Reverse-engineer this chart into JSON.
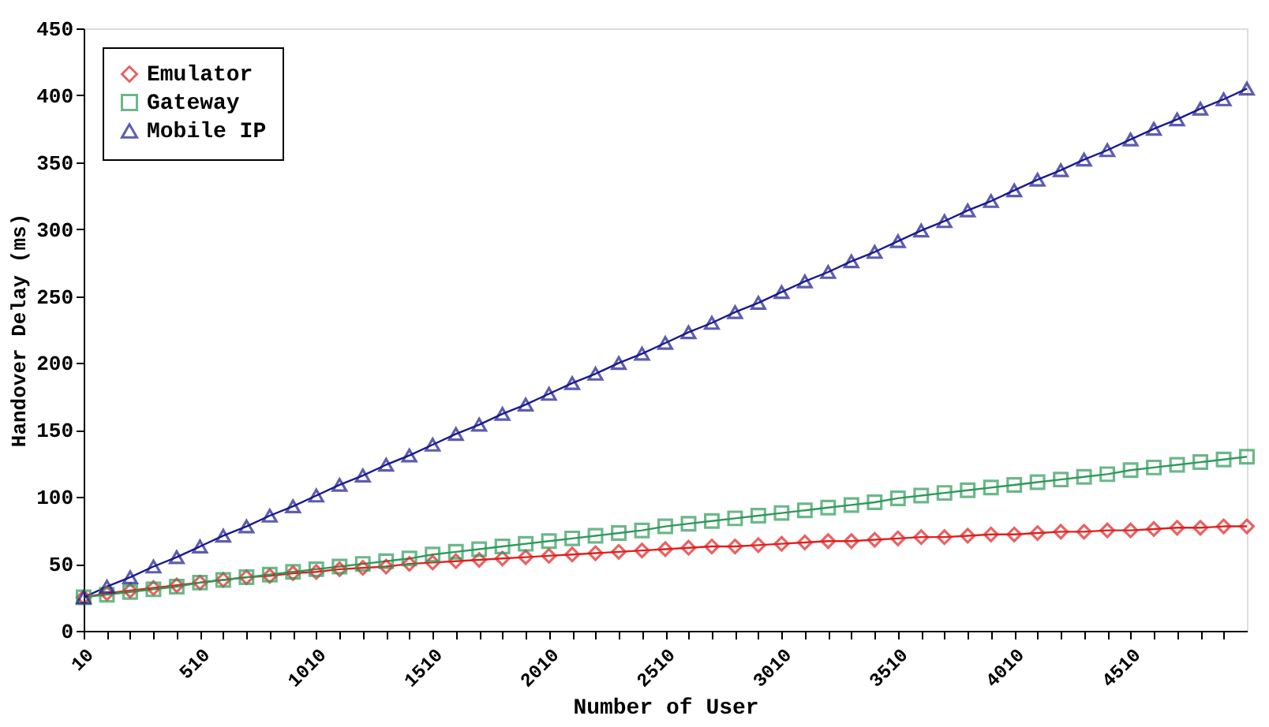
{
  "chart_data": {
    "type": "line",
    "xlabel": "Number of User",
    "ylabel": "Handover Delay (ms)",
    "x": [
      10,
      110,
      210,
      310,
      410,
      510,
      610,
      710,
      810,
      910,
      1010,
      1110,
      1210,
      1310,
      1410,
      1510,
      1610,
      1710,
      1810,
      1910,
      2010,
      2110,
      2210,
      2310,
      2410,
      2510,
      2610,
      2710,
      2810,
      2910,
      3010,
      3110,
      3210,
      3310,
      3410,
      3510,
      3610,
      3710,
      3810,
      3910,
      4010,
      4110,
      4210,
      4310,
      4410,
      4510,
      4610,
      4710,
      4810,
      4910,
      5010
    ],
    "series": [
      {
        "name": "Emulator",
        "color": "#e02020",
        "marker": "diamond",
        "values": [
          25,
          28,
          30,
          32,
          34,
          36,
          38,
          40,
          41,
          43,
          44,
          46,
          47,
          48,
          50,
          51,
          52,
          53,
          54,
          55,
          56,
          57,
          58,
          59,
          60,
          61,
          62,
          63,
          63,
          64,
          65,
          66,
          67,
          67,
          68,
          69,
          70,
          70,
          71,
          72,
          72,
          73,
          74,
          74,
          75,
          75,
          76,
          77,
          77,
          78,
          78
        ]
      },
      {
        "name": "Gateway",
        "color": "#2e9a5a",
        "marker": "square",
        "values": [
          25,
          27,
          29,
          31,
          33,
          36,
          38,
          40,
          42,
          44,
          46,
          48,
          50,
          52,
          54,
          57,
          59,
          61,
          63,
          65,
          67,
          69,
          71,
          73,
          75,
          78,
          80,
          82,
          84,
          86,
          88,
          90,
          92,
          94,
          96,
          99,
          101,
          103,
          105,
          107,
          109,
          111,
          113,
          115,
          117,
          120,
          122,
          124,
          126,
          128,
          130
        ]
      },
      {
        "name": "Mobile IP",
        "color": "#1a1a8c",
        "marker": "triangle",
        "values": [
          25,
          33,
          40,
          48,
          55,
          63,
          71,
          78,
          86,
          93,
          101,
          109,
          116,
          124,
          131,
          139,
          147,
          154,
          162,
          169,
          177,
          185,
          192,
          200,
          207,
          215,
          223,
          230,
          238,
          245,
          253,
          261,
          268,
          276,
          283,
          291,
          299,
          306,
          314,
          321,
          329,
          337,
          344,
          352,
          359,
          367,
          375,
          382,
          390,
          397,
          405
        ]
      }
    ],
    "xlim": [
      10,
      5010
    ],
    "xticks": [
      10,
      {
        "value": 110,
        "label": null
      },
      {
        "value": 210,
        "label": null
      },
      {
        "value": 310,
        "label": null
      },
      {
        "value": 410,
        "label": null
      },
      510,
      {
        "value": 610,
        "label": null
      },
      {
        "value": 710,
        "label": null
      },
      {
        "value": 810,
        "label": null
      },
      {
        "value": 910,
        "label": null
      },
      1010,
      {
        "value": 1110,
        "label": null
      },
      {
        "value": 1210,
        "label": null
      },
      {
        "value": 1310,
        "label": null
      },
      {
        "value": 1410,
        "label": null
      },
      1510,
      {
        "value": 1610,
        "label": null
      },
      {
        "value": 1710,
        "label": null
      },
      {
        "value": 1810,
        "label": null
      },
      {
        "value": 1910,
        "label": null
      },
      2010,
      {
        "value": 2110,
        "label": null
      },
      {
        "value": 2210,
        "label": null
      },
      {
        "value": 2310,
        "label": null
      },
      {
        "value": 2410,
        "label": null
      },
      2510,
      {
        "value": 2610,
        "label": null
      },
      {
        "value": 2710,
        "label": null
      },
      {
        "value": 2810,
        "label": null
      },
      {
        "value": 2910,
        "label": null
      },
      3010,
      {
        "value": 3110,
        "label": null
      },
      {
        "value": 3210,
        "label": null
      },
      {
        "value": 3310,
        "label": null
      },
      {
        "value": 3410,
        "label": null
      },
      3510,
      {
        "value": 3610,
        "label": null
      },
      {
        "value": 3710,
        "label": null
      },
      {
        "value": 3810,
        "label": null
      },
      {
        "value": 3910,
        "label": null
      },
      4010,
      {
        "value": 4110,
        "label": null
      },
      {
        "value": 4210,
        "label": null
      },
      {
        "value": 4310,
        "label": null
      },
      {
        "value": 4410,
        "label": null
      },
      4510,
      {
        "value": 4610,
        "label": null
      },
      {
        "value": 4710,
        "label": null
      },
      {
        "value": 4810,
        "label": null
      },
      {
        "value": 4910,
        "label": null
      }
    ],
    "ylim": [
      0,
      450
    ],
    "yticks": [
      0,
      50,
      100,
      150,
      200,
      250,
      300,
      350,
      400,
      450
    ],
    "grid": false,
    "legend": "top left",
    "line_style": "solid"
  }
}
